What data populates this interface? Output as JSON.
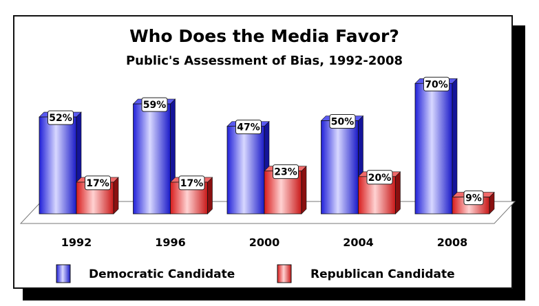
{
  "chart_data": {
    "type": "bar",
    "title": "Who Does the Media Favor?",
    "subtitle": "Public's Assessment of Bias, 1992-2008",
    "categories": [
      "1992",
      "1996",
      "2000",
      "2004",
      "2008"
    ],
    "series": [
      {
        "name": "Democratic Candidate",
        "values": [
          52,
          59,
          47,
          50,
          70
        ],
        "labels": [
          "52%",
          "59%",
          "47%",
          "50%",
          "70%"
        ],
        "color": "#3a3ae6"
      },
      {
        "name": "Republican Candidate",
        "values": [
          17,
          17,
          23,
          20,
          9
        ],
        "labels": [
          "17%",
          "17%",
          "23%",
          "20%",
          "9%"
        ],
        "color": "#e63a3a"
      }
    ],
    "ylim": [
      0,
      70
    ],
    "legend_position": "bottom",
    "grid": false
  }
}
